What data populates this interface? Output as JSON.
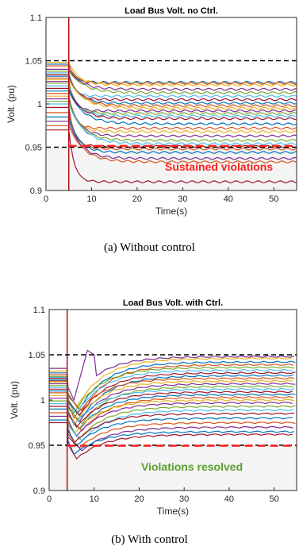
{
  "chart_data": [
    {
      "type": "line",
      "title": "Load Bus Volt. no Ctrl.",
      "xlabel": "Time(s)",
      "ylabel": "Volt. (pu)",
      "xlim": [
        0,
        55
      ],
      "ylim": [
        0.9,
        1.1
      ],
      "x_ticks": [
        0,
        10,
        20,
        30,
        40,
        50
      ],
      "y_ticks": [
        0.9,
        0.95,
        1,
        1.05,
        1.1
      ],
      "y_tick_labels": [
        "0.9",
        "0.95",
        "1",
        "1.05",
        "1.1"
      ],
      "disturbance_time": 5,
      "limit_lines": [
        {
          "value": 1.05,
          "color": "#000000"
        },
        {
          "value": 0.95,
          "color": "#000000"
        }
      ],
      "annotation": {
        "text": "Sustained violations",
        "color": "#ff1f1f"
      },
      "highlight": {
        "from": 0.95,
        "to": 0.953,
        "color": "#ff2222"
      },
      "series": [
        {
          "color": "#0072bd",
          "pre": 1.046,
          "final": 1.025
        },
        {
          "color": "#d95319",
          "pre": 1.044,
          "final": 1.024
        },
        {
          "color": "#edb120",
          "pre": 1.048,
          "final": 1.022
        },
        {
          "color": "#7e2f8e",
          "pre": 1.04,
          "final": 1.017
        },
        {
          "color": "#77ac30",
          "pre": 1.038,
          "final": 1.013
        },
        {
          "color": "#4dbeee",
          "pre": 1.036,
          "final": 1.009
        },
        {
          "color": "#a2142f",
          "pre": 1.034,
          "final": 1.005
        },
        {
          "color": "#0072bd",
          "pre": 1.032,
          "final": 1.001
        },
        {
          "color": "#d95319",
          "pre": 1.03,
          "final": 0.998
        },
        {
          "color": "#edb120",
          "pre": 1.028,
          "final": 0.995
        },
        {
          "color": "#7e2f8e",
          "pre": 1.026,
          "final": 0.992
        },
        {
          "color": "#77ac30",
          "pre": 1.024,
          "final": 0.989
        },
        {
          "color": "#4dbeee",
          "pre": 1.021,
          "final": 0.986
        },
        {
          "color": "#a2142f",
          "pre": 1.018,
          "final": 0.983
        },
        {
          "color": "#0072bd",
          "pre": 1.015,
          "final": 0.977
        },
        {
          "color": "#d95319",
          "pre": 1.012,
          "final": 0.972
        },
        {
          "color": "#edb120",
          "pre": 1.009,
          "final": 0.968
        },
        {
          "color": "#7e2f8e",
          "pre": 1.006,
          "final": 0.963
        },
        {
          "color": "#77ac30",
          "pre": 1.003,
          "final": 0.958
        },
        {
          "color": "#4dbeee",
          "pre": 1.0,
          "final": 0.954
        },
        {
          "color": "#a2142f",
          "pre": 0.996,
          "final": 0.951
        },
        {
          "color": "#d95319",
          "pre": 0.99,
          "final": 0.948
        },
        {
          "color": "#0072bd",
          "pre": 0.985,
          "final": 0.944
        },
        {
          "color": "#7e2f8e",
          "pre": 0.98,
          "final": 0.937
        },
        {
          "color": "#d95319",
          "pre": 0.975,
          "final": 0.933
        },
        {
          "color": "#a2142f",
          "pre": 0.97,
          "final": 0.91
        }
      ]
    },
    {
      "type": "line",
      "title": "Load Bus Volt. with Ctrl.",
      "xlabel": "Time(s)",
      "ylabel": "Volt. (pu)",
      "xlim": [
        0,
        55
      ],
      "ylim": [
        0.9,
        1.1
      ],
      "x_ticks": [
        0,
        10,
        20,
        30,
        40,
        50
      ],
      "y_ticks": [
        0.9,
        0.95,
        1,
        1.05,
        1.1
      ],
      "y_tick_labels": [
        "0.9",
        "0.95",
        "1",
        "1.05",
        "1.1"
      ],
      "disturbance_time": 4,
      "limit_lines": [
        {
          "value": 1.05,
          "color": "#000000"
        },
        {
          "value": 0.95,
          "color": "#000000"
        }
      ],
      "annotation": {
        "text": "Violations resolved",
        "color": "#5a9e2f"
      },
      "highlight": {
        "from": 0.948,
        "to": 0.951,
        "color": "#ff2222"
      },
      "series": [
        {
          "color": "#7e2f8e",
          "pre": 1.035,
          "dip": 1.0,
          "peak": 1.055,
          "final": 1.048
        },
        {
          "color": "#edb120",
          "pre": 1.032,
          "dip": 0.992,
          "final": 1.046
        },
        {
          "color": "#0072bd",
          "pre": 1.03,
          "dip": 0.99,
          "final": 1.042
        },
        {
          "color": "#d95319",
          "pre": 1.028,
          "dip": 0.988,
          "final": 1.039
        },
        {
          "color": "#77ac30",
          "pre": 1.026,
          "dip": 0.986,
          "final": 1.036
        },
        {
          "color": "#4dbeee",
          "pre": 1.025,
          "dip": 0.985,
          "final": 1.033
        },
        {
          "color": "#a2142f",
          "pre": 1.024,
          "dip": 0.983,
          "final": 1.03
        },
        {
          "color": "#0072bd",
          "pre": 1.022,
          "dip": 0.981,
          "final": 1.027
        },
        {
          "color": "#d95319",
          "pre": 1.021,
          "dip": 0.98,
          "final": 1.024
        },
        {
          "color": "#edb120",
          "pre": 1.02,
          "dip": 0.978,
          "final": 1.021
        },
        {
          "color": "#7e2f8e",
          "pre": 1.018,
          "dip": 0.976,
          "final": 1.018
        },
        {
          "color": "#77ac30",
          "pre": 1.016,
          "dip": 0.974,
          "final": 1.015
        },
        {
          "color": "#4dbeee",
          "pre": 1.014,
          "dip": 0.972,
          "final": 1.012
        },
        {
          "color": "#a2142f",
          "pre": 1.012,
          "dip": 0.97,
          "final": 1.009
        },
        {
          "color": "#0072bd",
          "pre": 1.01,
          "dip": 0.968,
          "final": 1.006
        },
        {
          "color": "#d95319",
          "pre": 1.008,
          "dip": 0.966,
          "final": 1.003
        },
        {
          "color": "#edb120",
          "pre": 1.005,
          "dip": 0.963,
          "final": 1.0
        },
        {
          "color": "#7e2f8e",
          "pre": 1.002,
          "dip": 0.96,
          "final": 0.997
        },
        {
          "color": "#77ac30",
          "pre": 0.999,
          "dip": 0.957,
          "final": 0.993
        },
        {
          "color": "#4dbeee",
          "pre": 0.996,
          "dip": 0.955,
          "final": 0.989
        },
        {
          "color": "#a2142f",
          "pre": 0.993,
          "dip": 0.952,
          "final": 0.985
        },
        {
          "color": "#0072bd",
          "pre": 0.99,
          "dip": 0.95,
          "final": 0.98
        },
        {
          "color": "#d95319",
          "pre": 0.986,
          "dip": 0.947,
          "final": 0.975
        },
        {
          "color": "#7e2f8e",
          "pre": 0.982,
          "dip": 0.944,
          "final": 0.97
        },
        {
          "color": "#0072bd",
          "pre": 0.978,
          "dip": 0.94,
          "final": 0.965
        },
        {
          "color": "#a2142f",
          "pre": 0.975,
          "dip": 0.935,
          "final": 0.962
        }
      ]
    }
  ],
  "captions": {
    "a": "(a) Without control",
    "b": "(b) With control"
  }
}
